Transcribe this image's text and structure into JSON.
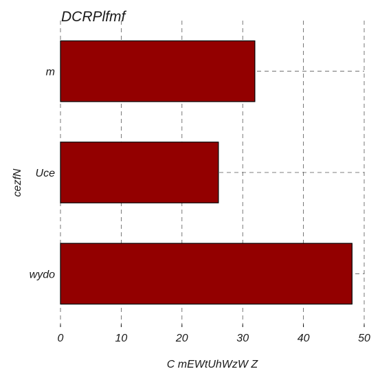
{
  "chart_data": {
    "type": "bar",
    "orientation": "horizontal",
    "title": "DCRPlfmf",
    "xlabel": "C mEWtUhWzW Z",
    "ylabel": "cezfN",
    "categories": [
      "m",
      "Uce",
      "wydo"
    ],
    "values": [
      32,
      26,
      48
    ],
    "xlim": [
      0,
      50
    ],
    "xticks": [
      "0",
      "10",
      "20",
      "30",
      "40",
      "50"
    ],
    "grid": true,
    "bar_color": "#930000"
  }
}
